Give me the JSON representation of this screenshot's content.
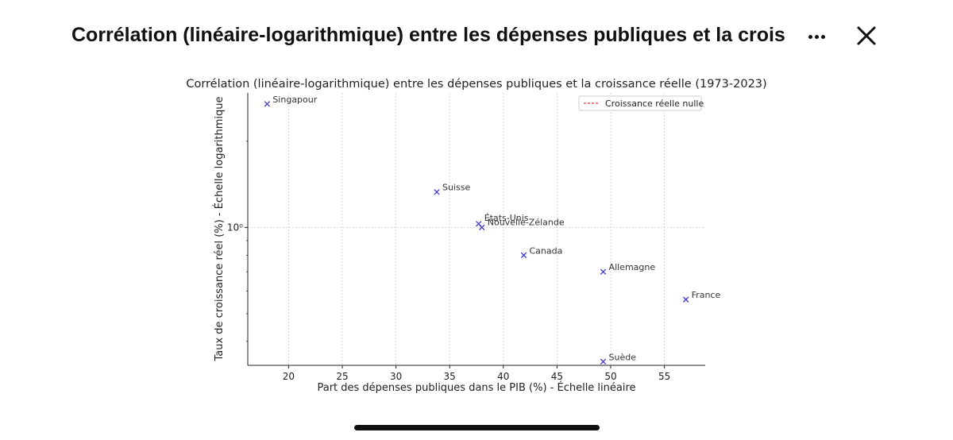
{
  "header": {
    "title": "Corrélation (linéaire-logarithmique) entre les dépenses publiques et la croiss…",
    "more_icon": "more-horizontal-icon",
    "close_icon": "close-icon"
  },
  "chart_data": {
    "type": "scatter",
    "title": "Corrélation (linéaire-logarithmique) entre les dépenses publiques et la croissance réelle (1973-2023)",
    "xlabel": "Part des dépenses publiques dans le PIB (%) - Échelle linéaire",
    "ylabel": "Taux de croissance réel (%) - Échelle logarithmique",
    "xscale": "linear",
    "yscale": "log",
    "xlim": [
      16.2,
      58.8
    ],
    "ylim": [
      0.33,
      2.95
    ],
    "xticks": [
      20,
      25,
      30,
      35,
      40,
      45,
      50,
      55
    ],
    "yticks": [
      1.0
    ],
    "ytick_labels": [
      "10⁰"
    ],
    "grid": true,
    "marker": "x",
    "marker_color": "#3b3bcc",
    "points": [
      {
        "label": "Singapour",
        "x": 18.0,
        "y": 2.7
      },
      {
        "label": "Suisse",
        "x": 33.8,
        "y": 1.33
      },
      {
        "label": "États-Unis",
        "x": 37.7,
        "y": 1.03
      },
      {
        "label": "Nouvelle-Zélande",
        "x": 38.0,
        "y": 1.0
      },
      {
        "label": "Canada",
        "x": 41.9,
        "y": 0.8
      },
      {
        "label": "Allemagne",
        "x": 49.3,
        "y": 0.7
      },
      {
        "label": "France",
        "x": 57.0,
        "y": 0.56
      },
      {
        "label": "Suède",
        "x": 49.3,
        "y": 0.34
      }
    ],
    "hline": {
      "y": 0,
      "label": "Croissance réelle nulle",
      "color": "#e03030",
      "style": "dashed"
    },
    "legend": {
      "loc": "upper right",
      "entries": [
        "Croissance réelle nulle"
      ]
    }
  }
}
